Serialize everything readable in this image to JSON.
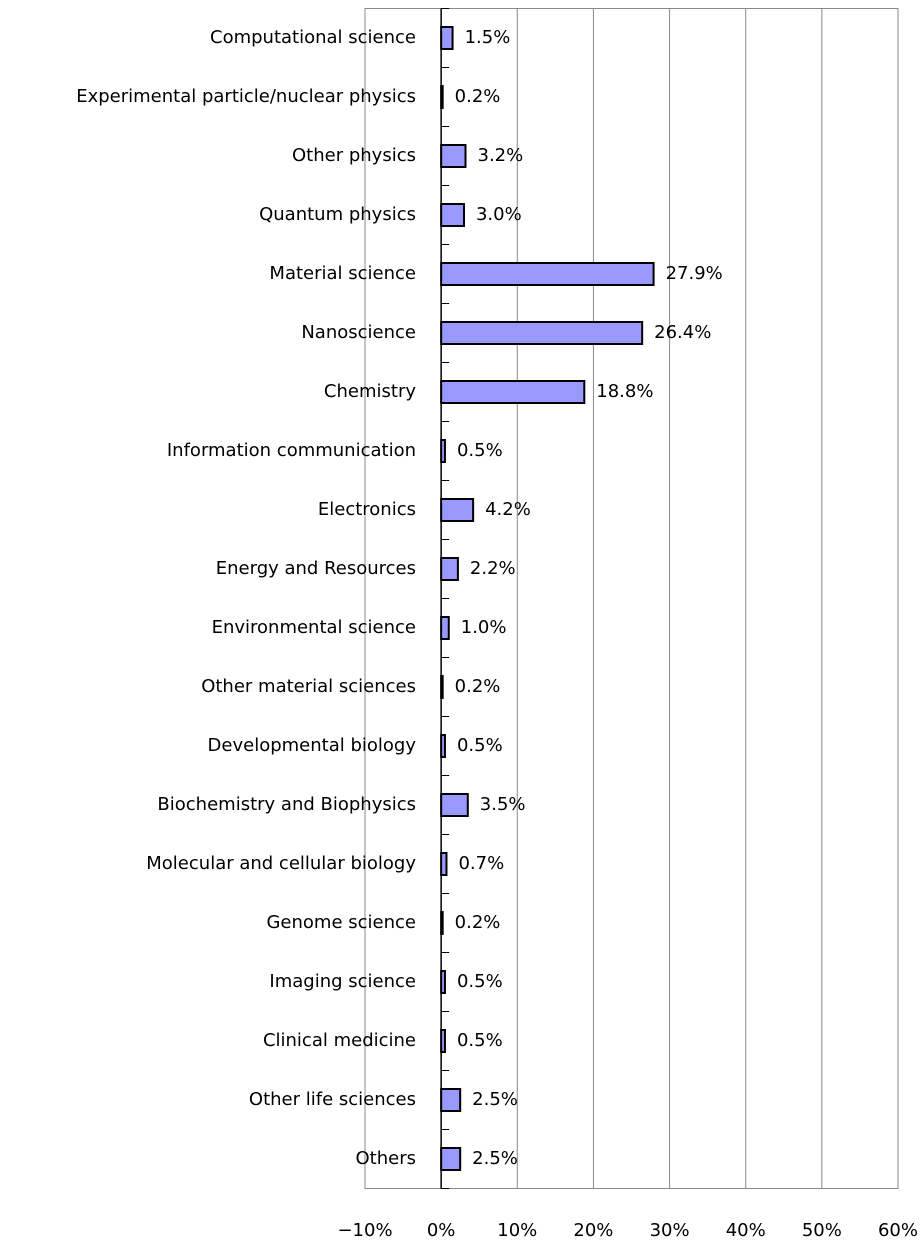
{
  "chart_data": {
    "type": "bar",
    "orientation": "horizontal",
    "categories": [
      "Computational science",
      "Experimental particle/nuclear physics",
      "Other physics",
      "Quantum physics",
      "Material science",
      "Nanoscience",
      "Chemistry",
      "Information communication",
      "Electronics",
      "Energy and Resources",
      "Environmental science",
      "Other material sciences",
      "Developmental biology",
      "Biochemistry and Biophysics",
      "Molecular and cellular biology",
      "Genome science",
      "Imaging science",
      "Clinical medicine",
      "Other life sciences",
      "Others"
    ],
    "values": [
      1.5,
      0.2,
      3.2,
      3.0,
      27.9,
      26.4,
      18.8,
      0.5,
      4.2,
      2.2,
      1.0,
      0.2,
      0.5,
      3.5,
      0.7,
      0.2,
      0.5,
      0.5,
      2.5,
      2.5
    ],
    "value_labels": [
      "1.5%",
      "0.2%",
      "3.2%",
      "3.0%",
      "27.9%",
      "26.4%",
      "18.8%",
      "0.5%",
      "4.2%",
      "2.2%",
      "1.0%",
      "0.2%",
      "0.5%",
      "3.5%",
      "0.7%",
      "0.2%",
      "0.5%",
      "0.5%",
      "2.5%",
      "2.5%"
    ],
    "color": "#9999ff",
    "xlim": [
      -10,
      60
    ],
    "xticks": [
      {
        "value": -10,
        "label": "−10%"
      },
      {
        "value": 0,
        "label": "0%"
      },
      {
        "value": 10,
        "label": "10%"
      },
      {
        "value": 20,
        "label": "20%"
      },
      {
        "value": 30,
        "label": "30%"
      },
      {
        "value": 40,
        "label": "40%"
      },
      {
        "value": 50,
        "label": "50%"
      },
      {
        "value": 60,
        "label": "60%"
      }
    ],
    "grid": true
  }
}
